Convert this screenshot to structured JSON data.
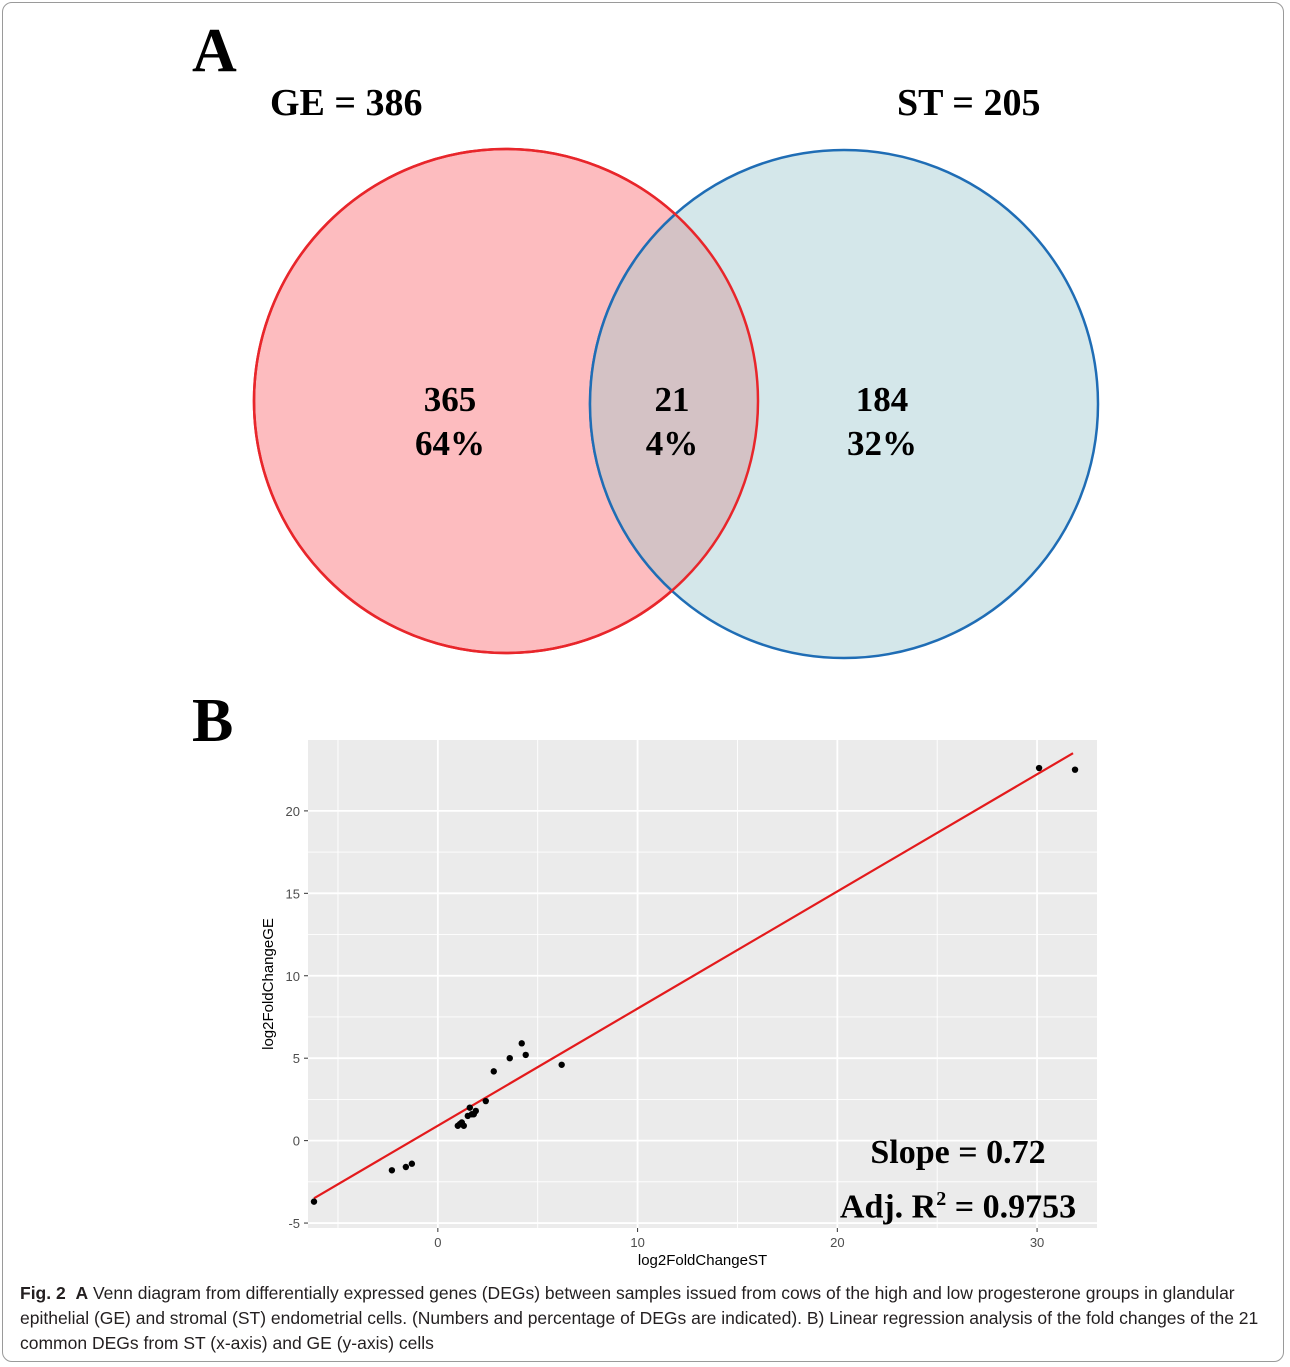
{
  "panel_a": {
    "letter": "A",
    "set_ge_label": "GE = 386",
    "set_st_label": "ST = 205",
    "ge_only": {
      "count": "365",
      "percent": "64%"
    },
    "overlap": {
      "count": "21",
      "percent": "4%"
    },
    "st_only": {
      "count": "184",
      "percent": "32%"
    },
    "colors": {
      "ge_stroke": "#e8262b",
      "ge_fill": "#fdbcbf",
      "st_stroke": "#1f6db5",
      "st_fill": "#d4e7ea",
      "overlap_fill": "#d4c2c5",
      "overlap_stroke": "#c44a50"
    }
  },
  "panel_b": {
    "letter": "B",
    "stats": {
      "slope_text": "Slope = 0.72",
      "r2_prefix": "Adj. R",
      "r2_sup": "2",
      "r2_suffix": " = 0.9753"
    }
  },
  "chart_data": {
    "type": "scatter",
    "xlabel": "log2FoldChangeST",
    "ylabel": "log2FoldChangeGE",
    "xlim": [
      -6.5,
      33
    ],
    "ylim": [
      -5.3,
      24.3
    ],
    "xticks": [
      0,
      10,
      20,
      30
    ],
    "yticks": [
      -5,
      0,
      5,
      10,
      15,
      20
    ],
    "grid": true,
    "panel_background": "#ebebeb",
    "points": [
      [
        -6.2,
        -3.7
      ],
      [
        -2.3,
        -1.8
      ],
      [
        -1.6,
        -1.6
      ],
      [
        -1.3,
        -1.4
      ],
      [
        1.0,
        0.9
      ],
      [
        1.1,
        1.0
      ],
      [
        1.2,
        1.1
      ],
      [
        1.3,
        0.9
      ],
      [
        1.5,
        1.5
      ],
      [
        1.6,
        2.0
      ],
      [
        1.7,
        1.6
      ],
      [
        1.8,
        1.6
      ],
      [
        1.9,
        1.8
      ],
      [
        2.4,
        2.4
      ],
      [
        2.8,
        4.2
      ],
      [
        3.6,
        5.0
      ],
      [
        4.2,
        5.9
      ],
      [
        4.4,
        5.2
      ],
      [
        6.2,
        4.6
      ],
      [
        30.1,
        22.6
      ],
      [
        31.9,
        22.5
      ]
    ],
    "fit_line": {
      "color": "#e31a1c",
      "x": [
        -6.2,
        31.8
      ],
      "y": [
        -3.5,
        23.5
      ]
    }
  },
  "caption": {
    "fig_label": "Fig. 2",
    "a_label": "A",
    "text": " Venn diagram from differentially expressed genes (DEGs) between samples issued from cows of the high and low progesterone groups in glandular epithelial (GE) and stromal (ST) endometrial cells. (Numbers and percentage of DEGs are indicated). B) Linear regression analysis of the fold changes of the 21 common DEGs from ST (x-axis) and GE (y-axis) cells"
  }
}
